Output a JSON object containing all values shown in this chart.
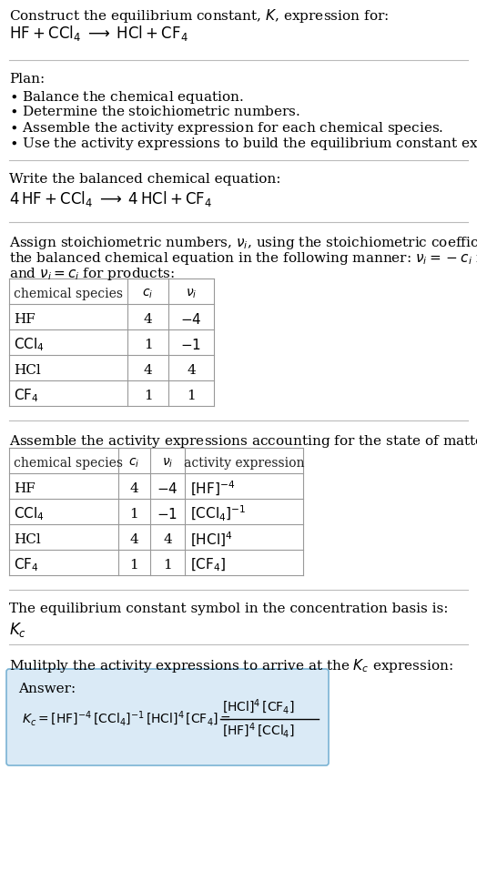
{
  "bg_color": "#ffffff",
  "text_color": "#000000",
  "table_border_color": "#999999",
  "separator_color": "#cccccc",
  "answer_box_color": "#daeaf6",
  "answer_box_border": "#7ab3d4",
  "font_size": 11,
  "small_font_size": 10,
  "table1_rows": [
    [
      "HF",
      "4",
      "$-4$"
    ],
    [
      "$\\mathrm{CCl_4}$",
      "1",
      "$-1$"
    ],
    [
      "HCl",
      "4",
      "4"
    ],
    [
      "$\\mathrm{CF_4}$",
      "1",
      "1"
    ]
  ],
  "table2_rows": [
    [
      "HF",
      "4",
      "$-4$",
      "$[\\mathrm{HF}]^{-4}$"
    ],
    [
      "$\\mathrm{CCl_4}$",
      "1",
      "$-1$",
      "$[\\mathrm{CCl_4}]^{-1}$"
    ],
    [
      "HCl",
      "4",
      "4",
      "$[\\mathrm{HCl}]^{4}$"
    ],
    [
      "$\\mathrm{CF_4}$",
      "1",
      "1",
      "$[\\mathrm{CF_4}]$"
    ]
  ]
}
